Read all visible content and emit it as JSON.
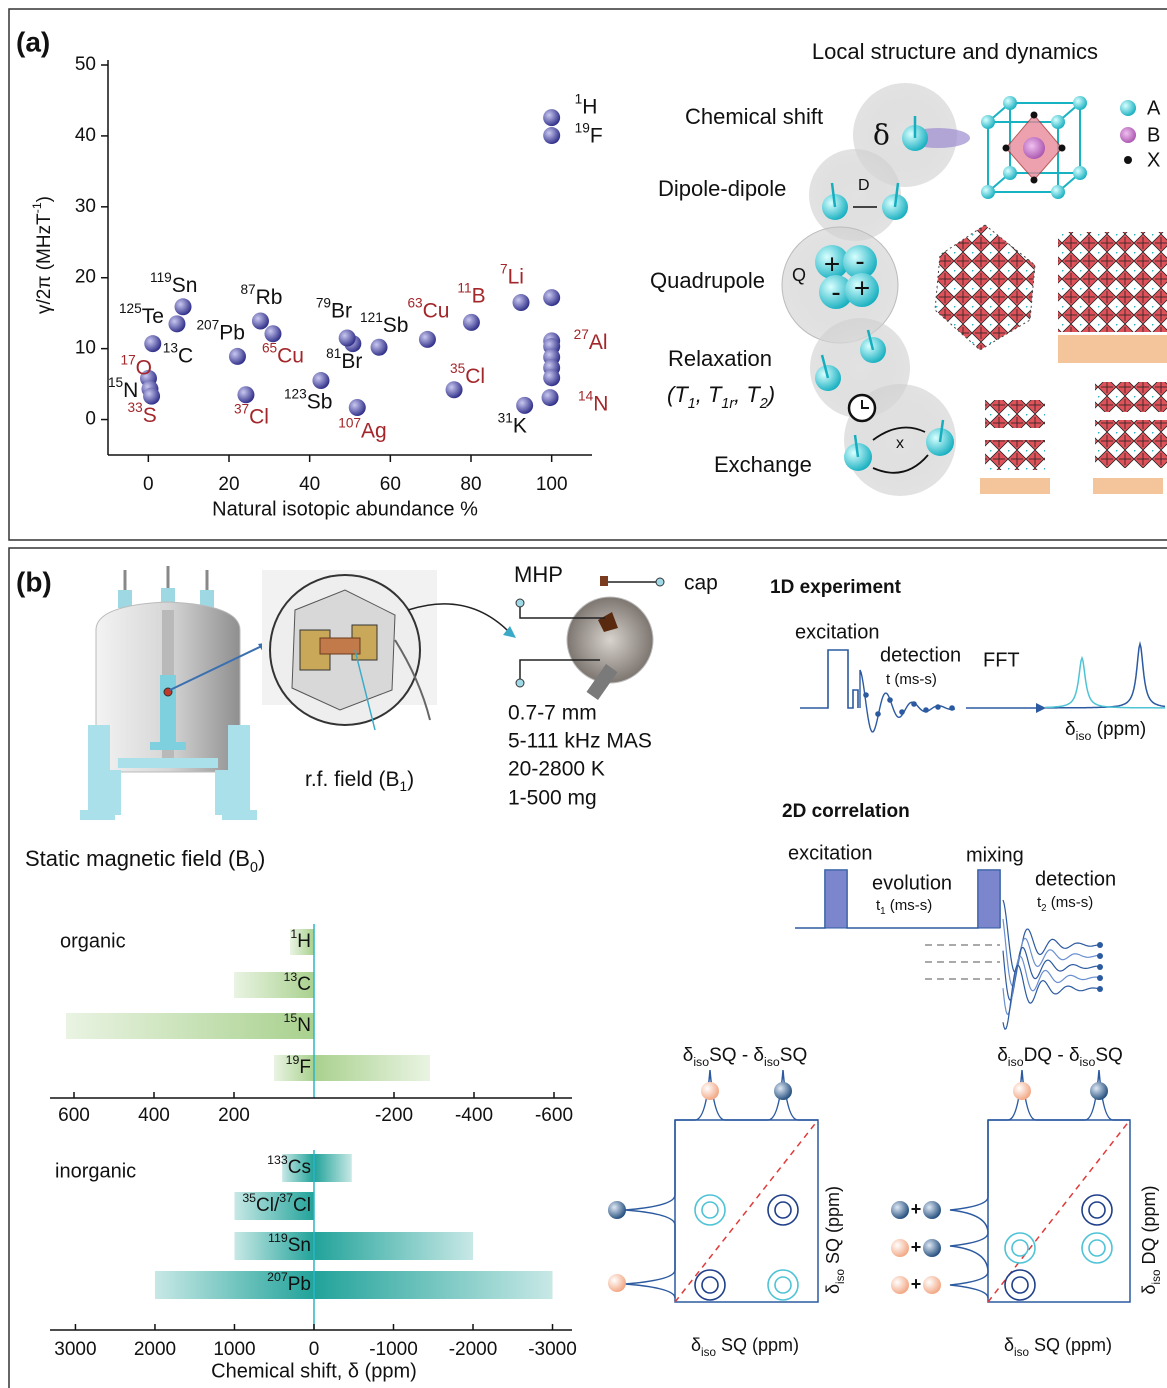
{
  "panel_a": {
    "label": "(a)",
    "title": "Local structure and dynamics",
    "interactions": {
      "chemical_shift": "Chemical shift",
      "delta": "δ",
      "dipole": "Dipole-dipole",
      "dipole_symbol": "D",
      "quadrupole": "Quadrupole",
      "quadrupole_symbol": "Q",
      "quadrupole_charges": [
        "+",
        "-",
        "-",
        "+"
      ],
      "relaxation": "Relaxation",
      "relaxation_times": [
        "(T",
        "1",
        ", T",
        "1r",
        ", T",
        "2",
        ")"
      ],
      "exchange": "Exchange",
      "exchange_symbol": "x"
    },
    "legend": [
      "A",
      "B",
      "X"
    ]
  },
  "panel_b": {
    "label": "(b)",
    "sample": "MHP",
    "cap": "cap",
    "specs": [
      "0.7-7 mm",
      "5-111 kHz MAS",
      "20-2800 K",
      "1-500 mg"
    ],
    "rf_field": [
      "r.f. field (B",
      "1",
      ")"
    ],
    "static_field": [
      "Static magnetic field (B",
      "0",
      ")"
    ],
    "one_d": {
      "title": "1D experiment",
      "excitation": "excitation",
      "detection": "detection",
      "time": "t (ms-s)",
      "fft": "FFT",
      "axis": [
        "δ",
        "iso",
        " (ppm)"
      ]
    },
    "two_d": {
      "title": "2D correlation",
      "excitation": "excitation",
      "evolution": "evolution",
      "t1": [
        "t",
        "1",
        " (ms-s)"
      ],
      "mixing": "mixing",
      "detection": "detection",
      "t2": [
        "t",
        "2",
        " (ms-s)"
      ],
      "homo_title": [
        "δ",
        "iso",
        "SQ - δ",
        "iso",
        "SQ"
      ],
      "hetero_title": [
        "δ",
        "iso",
        "DQ - δ",
        "iso",
        "SQ"
      ],
      "homo_x": [
        "δ",
        "iso",
        " SQ (ppm)"
      ],
      "homo_y": [
        "δ",
        "iso",
        " SQ (ppm)"
      ],
      "hetero_x": [
        "δ",
        "iso",
        " SQ (ppm)"
      ],
      "hetero_y": [
        "δ",
        "iso",
        " DQ (ppm)"
      ],
      "pair_sign": "+"
    }
  },
  "chart_data": [
    {
      "type": "scatter",
      "xlabel": "Natural isotopic abundance %",
      "ylabel": [
        "γ/2π (MHzT",
        "-1",
        ")"
      ],
      "xlim": [
        -10,
        110
      ],
      "ylim": [
        -5,
        50
      ],
      "xticks": [
        0,
        20,
        40,
        60,
        80,
        100
      ],
      "yticks": [
        0,
        10,
        20,
        30,
        40,
        50
      ],
      "color": "#2b2a86",
      "x": [
        99.99,
        100,
        8.6,
        7.1,
        1.1,
        0.04,
        0.4,
        0.8,
        22.1,
        27.8,
        30.9,
        24.2,
        42.8,
        51.8,
        50.7,
        49.3,
        57.2,
        69.2,
        75.8,
        80.1,
        92.4,
        93.3,
        100,
        99.6,
        100,
        100,
        100,
        100,
        100
      ],
      "values": [
        42.58,
        40.05,
        15.9,
        13.5,
        10.7,
        5.8,
        4.3,
        3.3,
        8.9,
        13.9,
        12.1,
        3.5,
        5.5,
        1.7,
        10.7,
        11.5,
        10.2,
        11.3,
        4.2,
        13.7,
        16.5,
        2.0,
        11.1,
        3.1,
        17.2,
        10.3,
        8.8,
        7.3,
        5.9
      ],
      "labels": [
        [
          "1",
          "H"
        ],
        [
          "19",
          "F"
        ],
        [
          "119",
          "Sn"
        ],
        [
          "125",
          "Te"
        ],
        [
          "13",
          "C"
        ],
        [
          "17",
          "O"
        ],
        [
          "15",
          "N"
        ],
        [
          "33",
          "S"
        ],
        [
          "207",
          "Pb"
        ],
        [
          "87",
          "Rb"
        ],
        [
          "65",
          "Cu"
        ],
        [
          "37",
          "Cl"
        ],
        [
          "123",
          "Sb"
        ],
        [
          "107",
          "Ag"
        ],
        [
          "79",
          "Br"
        ],
        [
          "81",
          "Br"
        ],
        [
          "121",
          "Sb"
        ],
        [
          "63",
          "Cu"
        ],
        [
          "35",
          "Cl"
        ],
        [
          "11",
          "B"
        ],
        [
          "7",
          "Li"
        ],
        [
          "31",
          "K"
        ],
        [
          "27",
          "Al"
        ],
        [
          "14",
          "N"
        ],
        null,
        null,
        null,
        null,
        null
      ],
      "label_colors": [
        "#111111",
        "#111111",
        "#111111",
        "#111111",
        "#111111",
        "#a3262a",
        "#111111",
        "#a3262a",
        "#111111",
        "#111111",
        "#a3262a",
        "#a3262a",
        "#111111",
        "#a3262a",
        "#111111",
        "#111111",
        "#111111",
        "#a3262a",
        "#a3262a",
        "#a3262a",
        "#a3262a",
        "#111111",
        "#a3262a",
        "#a3262a",
        null,
        null,
        null,
        null,
        null
      ]
    },
    {
      "type": "range-bar",
      "title": "organic",
      "categories": [
        [
          "1",
          "H"
        ],
        [
          "13",
          "C"
        ],
        [
          "15",
          "N"
        ],
        [
          "19",
          "F"
        ]
      ],
      "values": [
        [
          60,
          0
        ],
        [
          200,
          0
        ],
        [
          620,
          0
        ],
        [
          100,
          -290
        ]
      ],
      "xlim": [
        660,
        -645
      ],
      "xticks": [
        600,
        400,
        200,
        -200,
        -400,
        -600
      ],
      "color": "#a9d18e"
    },
    {
      "type": "range-bar",
      "title": "inorganic",
      "xlabel": "Chemical shift, δ (ppm)",
      "categories": [
        [
          "133",
          "Cs"
        ],
        [
          "35",
          "Cl/",
          "37",
          "Cl"
        ],
        [
          "119",
          "Sn"
        ],
        [
          "207",
          "Pb"
        ]
      ],
      "values": [
        [
          400,
          -475
        ],
        [
          1000,
          0
        ],
        [
          1000,
          -2000
        ],
        [
          2000,
          -3000
        ]
      ],
      "xlim": [
        3320,
        -3245
      ],
      "xticks": [
        3000,
        2000,
        1000,
        0,
        -1000,
        -2000,
        -3000
      ],
      "color": "#21a39a"
    }
  ]
}
